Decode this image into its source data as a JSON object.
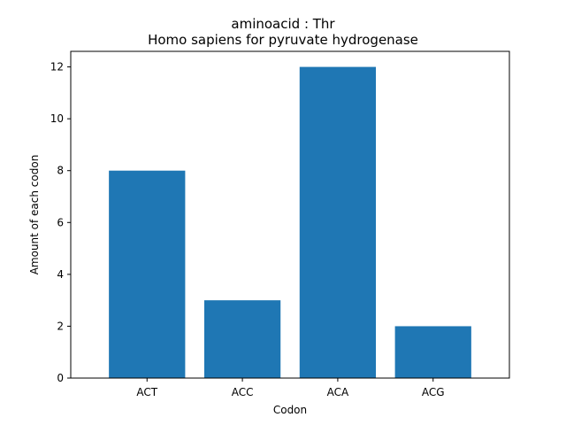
{
  "chart_data": {
    "type": "bar",
    "title": "aminoacid : Thr",
    "subtitle": "Homo sapiens for pyruvate hydrogenase",
    "xlabel": "Codon",
    "ylabel": "Amount of each codon",
    "categories": [
      "ACT",
      "ACC",
      "ACA",
      "ACG"
    ],
    "values": [
      8,
      3,
      12,
      2
    ],
    "ylim": [
      0,
      12.6
    ],
    "yticks": [
      0,
      2,
      4,
      6,
      8,
      10,
      12
    ],
    "bar_color": "#1f77b4",
    "grid": false,
    "legend": "none"
  }
}
